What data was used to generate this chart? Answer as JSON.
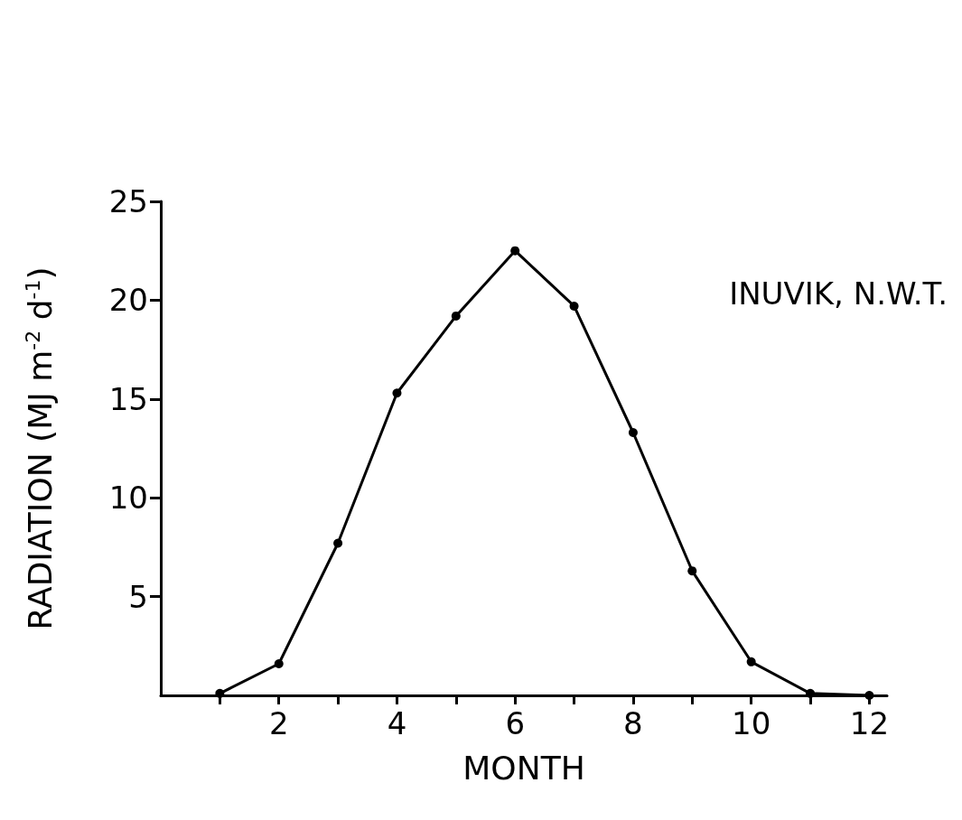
{
  "chart_data": {
    "type": "line",
    "xlabel": "MONTH",
    "ylabel": "RADIATION (MJ m$^{-2}$ d$^{-1}$)",
    "annotations": [
      "INUVIK, N.W.T."
    ],
    "x": [
      1,
      2,
      3,
      4,
      5,
      6,
      7,
      8,
      9,
      10,
      11,
      12
    ],
    "series": [
      {
        "color": "#000000",
        "values": [
          0.1,
          1.6,
          7.7,
          15.3,
          19.2,
          22.5,
          19.7,
          13.3,
          6.3,
          1.7,
          0.1,
          0
        ]
      }
    ],
    "xlim": [
      0,
      12.3
    ],
    "xticks": [
      {
        "value": 1,
        "label": null
      },
      2,
      {
        "value": 3,
        "label": null
      },
      4,
      {
        "value": 5,
        "label": null
      },
      6,
      {
        "value": 7,
        "label": null
      },
      8,
      {
        "value": 9,
        "label": null
      },
      10,
      {
        "value": 11,
        "label": null
      },
      12
    ],
    "ylim": [
      0,
      25
    ],
    "yticks": [
      5,
      10,
      15,
      20,
      25
    ],
    "grid": false,
    "marker": "circle",
    "line_style": "solid"
  }
}
